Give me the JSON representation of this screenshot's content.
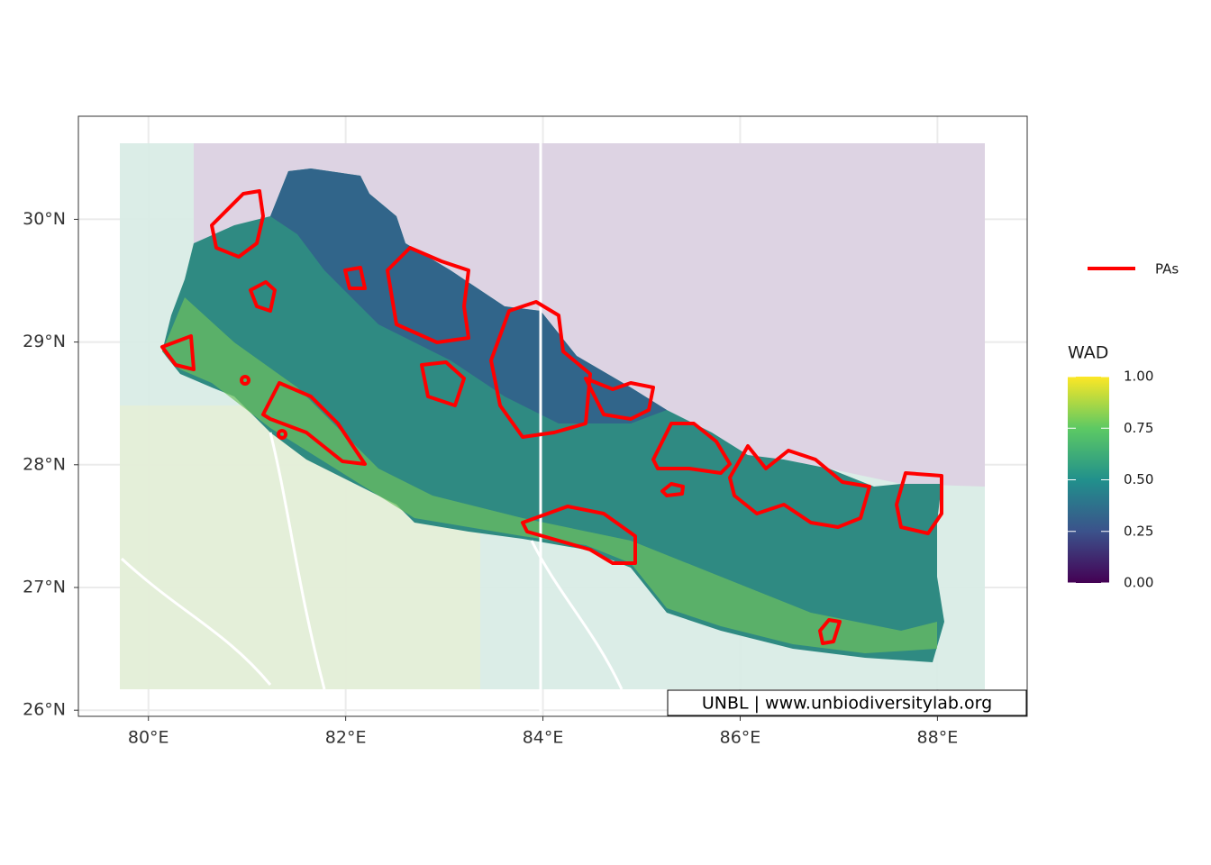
{
  "map": {
    "x_axis": {
      "lim": [
        79.29,
        88.91
      ],
      "ticks": [
        {
          "value": 80,
          "label": "80°E"
        },
        {
          "value": 82,
          "label": "82°E"
        },
        {
          "value": 84,
          "label": "84°E"
        },
        {
          "value": 86,
          "label": "86°E"
        },
        {
          "value": 88,
          "label": "88°E"
        }
      ]
    },
    "y_axis": {
      "lim": [
        25.95,
        30.84
      ],
      "ticks": [
        {
          "value": 26,
          "label": "26°N"
        },
        {
          "value": 27,
          "label": "27°N"
        },
        {
          "value": 28,
          "label": "28°N"
        },
        {
          "value": 29,
          "label": "29°N"
        },
        {
          "value": 30,
          "label": "30°N"
        }
      ]
    },
    "legend": {
      "line_label": "PAs",
      "line_color": "#ff0000",
      "colorbar": {
        "title": "WAD",
        "lim": [
          0,
          1
        ],
        "ticks": [
          {
            "value": 0,
            "label": "0.00"
          },
          {
            "value": 0.25,
            "label": "0.25"
          },
          {
            "value": 0.5,
            "label": "0.50"
          },
          {
            "value": 0.75,
            "label": "0.75"
          },
          {
            "value": 1,
            "label": "1.00"
          }
        ]
      }
    },
    "attribution": "UNBL | www.unbiodiversitylab.org"
  }
}
